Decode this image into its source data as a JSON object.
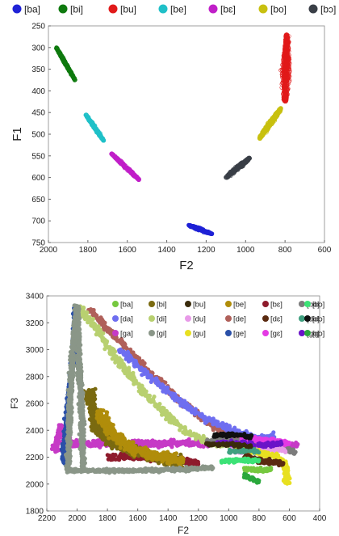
{
  "chart_data": [
    {
      "type": "scatter",
      "xlabel": "F2",
      "ylabel": "F1",
      "xlim": [
        2000,
        600
      ],
      "ylim": [
        750,
        250
      ],
      "x_reversed": true,
      "y_reversed": true,
      "xticks": [
        "2000",
        "1800",
        "1600",
        "1400",
        "1200",
        "1000",
        "800",
        "600"
      ],
      "yticks": [
        "250",
        "300",
        "350",
        "400",
        "450",
        "500",
        "550",
        "600",
        "650",
        "700",
        "750"
      ],
      "legend_position": "top",
      "grid": false,
      "series": [
        {
          "name": "[ba]",
          "color": "#1f22d6",
          "marker": "circle",
          "cluster": {
            "x_from": 1290,
            "y_from": 710,
            "x_to": 1170,
            "y_to": 730,
            "width": 22
          }
        },
        {
          "name": "[bi]",
          "color": "#0f7a0f",
          "marker": "circle",
          "cluster": {
            "x_from": 1960,
            "y_from": 300,
            "x_to": 1865,
            "y_to": 375,
            "width": 16
          }
        },
        {
          "name": "[bu]",
          "color": "#e11a1a",
          "marker": "circle",
          "cluster": {
            "x_from": 790,
            "y_from": 270,
            "x_to": 800,
            "y_to": 425,
            "width": 60
          }
        },
        {
          "name": "[be]",
          "color": "#20c0c8",
          "marker": "circle",
          "cluster": {
            "x_from": 1810,
            "y_from": 455,
            "x_to": 1720,
            "y_to": 515,
            "width": 18
          }
        },
        {
          "name": "[bɛ]",
          "color": "#c01fc8",
          "marker": "circle",
          "cluster": {
            "x_from": 1680,
            "y_from": 545,
            "x_to": 1540,
            "y_to": 605,
            "width": 20
          }
        },
        {
          "name": "[bo]",
          "color": "#c8c010",
          "marker": "circle",
          "cluster": {
            "x_from": 820,
            "y_from": 440,
            "x_to": 930,
            "y_to": 510,
            "width": 32
          }
        },
        {
          "name": "[bɔ]",
          "color": "#3a3f47",
          "marker": "circle",
          "cluster": {
            "x_from": 980,
            "y_from": 555,
            "x_to": 1100,
            "y_to": 600,
            "width": 30
          }
        }
      ]
    },
    {
      "type": "scatter",
      "xlabel": "F2",
      "ylabel": "F3",
      "xlim": [
        2200,
        400
      ],
      "ylim": [
        1800,
        3400
      ],
      "x_reversed": true,
      "xticks": [
        "2200",
        "2000",
        "1800",
        "1600",
        "1400",
        "1200",
        "1000",
        "800",
        "600",
        "400"
      ],
      "yticks": [
        "1800",
        "2000",
        "2200",
        "2400",
        "2600",
        "2800",
        "3000",
        "3200",
        "3400"
      ],
      "legend_position": "top-right",
      "grid": false,
      "series": [
        {
          "name": "[ba]",
          "color": "#76c83f"
        },
        {
          "name": "[bi]",
          "color": "#7a6a10"
        },
        {
          "name": "[bu]",
          "color": "#3a2b0c"
        },
        {
          "name": "[be]",
          "color": "#b08d0a"
        },
        {
          "name": "[bɛ]",
          "color": "#8e1b2c"
        },
        {
          "name": "[bo]",
          "color": "#7c7c7c"
        },
        {
          "name": "[bɔ]",
          "color": "#3ce276"
        },
        {
          "name": "[da]",
          "color": "#6e6ef0"
        },
        {
          "name": "[di]",
          "color": "#b8d070"
        },
        {
          "name": "[du]",
          "color": "#e89ae8"
        },
        {
          "name": "[de]",
          "color": "#b0605a"
        },
        {
          "name": "[dɛ]",
          "color": "#5a2a10"
        },
        {
          "name": "[do]",
          "color": "#40a080"
        },
        {
          "name": "[dɔ]",
          "color": "#101010"
        },
        {
          "name": "[ga]",
          "color": "#c63ac6"
        },
        {
          "name": "[gi]",
          "color": "#8a9688"
        },
        {
          "name": "[gu]",
          "color": "#e8e020"
        },
        {
          "name": "[ge]",
          "color": "#2a50a8"
        },
        {
          "name": "[gɛ]",
          "color": "#e43ae4"
        },
        {
          "name": "[go]",
          "color": "#6a14c8"
        },
        {
          "name": "[gɔ]",
          "color": "#2aa83c"
        }
      ]
    }
  ]
}
